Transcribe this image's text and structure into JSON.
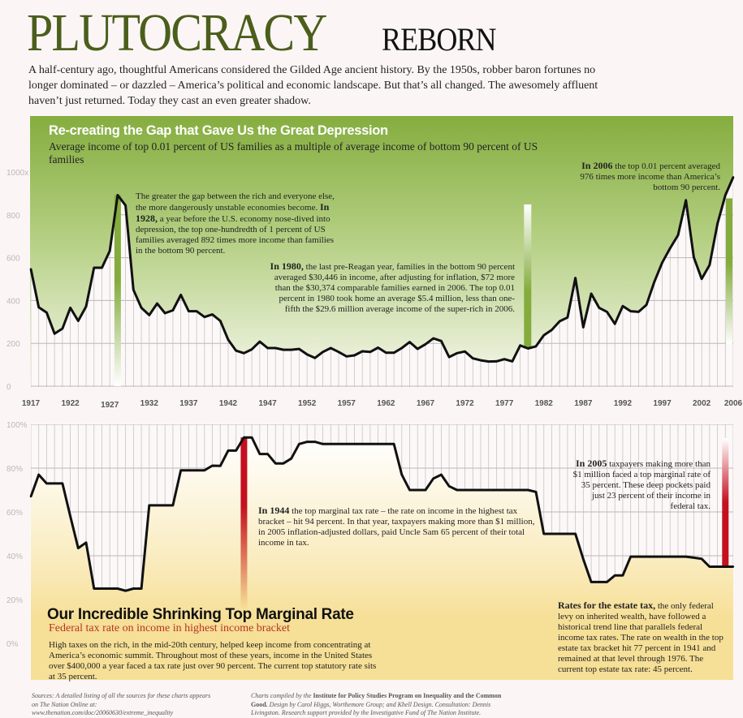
{
  "header": {
    "title_main": "PLUTOCRACY",
    "title_sub": "REBORN",
    "intro": "A half-century ago, thoughtful Americans considered the Gilded Age ancient history. By the 1950s, robber baron fortunes no longer dominated – or dazzled – America’s political and economic landscape. But that’s all changed. The awesomely affluent haven’t just returned. Today they cast an even greater shadow."
  },
  "income_panel": {
    "title": "Re-creating the Gap that Gave Us the Great Depression",
    "subtitle": "Average income of top 0.01 percent of US families as a multiple of average income of bottom 90 percent of US families",
    "note_1928": {
      "pre": "The greater the gap between the rich and everyone else, the more dangerously unstable economies become. ",
      "bold": "In 1928,",
      "post": " a year before the U.S. economy nose-dived into depression, the top one-hundredth of 1 percent of US families averaged 892 times more income than families in the bottom 90 percent."
    },
    "note_1980": {
      "bold": "In 1980,",
      "post": " the last pre-Reagan year, families in the bottom 90 percent averaged $30,446 in income, after adjusting for inflation, $72 more than the $30,374 comparable families earned in 2006. The top 0.01 percent in 1980 took home an average $5.4 million, less than one-fifth the $29.6 million average income of the super-rich in 2006."
    },
    "note_2006": {
      "bold": "In 2006",
      "post": " the top 0.01 percent averaged 976 times more income than America’s bottom 90 percent."
    }
  },
  "tax_panel": {
    "title": "Our Incredible Shrinking Top Marginal Rate",
    "subtitle": "Federal tax rate on income in highest income bracket",
    "body": "High taxes on the rich, in the mid-20th century, helped keep income from concentrating at America’s economic summit. Throughout most of these years, income in the United States over $400,000 a year faced a tax rate just over 90 percent. The current top statutory rate sits at 35 percent.",
    "note_1944": {
      "bold": "In 1944",
      "post": " the top marginal tax rate – the rate on income in the highest tax bracket – hit 94 percent. In that year, taxpayers making more than $1 million, in 2005 inflation-adjusted dollars, paid Uncle Sam 65 percent of their total income in tax."
    },
    "note_2005": {
      "bold": "In 2005",
      "post": " taxpayers making more than $1 million faced a top marginal rate of 35 percent. These deep pockets paid just 23 percent of their income in federal tax."
    },
    "note_estate": {
      "bold": "Rates for the estate tax,",
      "post": " the only federal levy on inherited wealth, have followed a historical trend line that parallels federal income tax rates. The rate on wealth in the top estate tax bracket hit 77 percent in 1941 and remained at that level through 1976. The current top estate tax rate: 45 percent."
    }
  },
  "footer": {
    "sources": "Sources: A detailed listing of all the sources for these charts appears on The Nation Online at: www.thenation.com/doc/20060630/extreme_inequality",
    "credits_pre": "Charts compiled by the ",
    "credits_bold": "Institute for Policy Studies Program on Inequality and the Common Good.",
    "credits_post": " Design by Carol Higgs, Worthemore Group; and Khell Design. Consultation: Dennis Livingston. Research support provided by the Investigative Fund of The Nation Institute."
  },
  "colors": {
    "title_green": "#4b5e1c",
    "income_fill": "#8bb046",
    "tax_fill": "#f6df96",
    "highlight_red": "#c4101f",
    "subtitle_red": "#b83228"
  },
  "chart_data": [
    {
      "type": "line",
      "x_start": 1917,
      "x_end": 2006,
      "x_tick_labels": [
        "1917",
        "1922",
        "1927",
        "1932",
        "1937",
        "1942",
        "1947",
        "1952",
        "1957",
        "1962",
        "1967",
        "1972",
        "1977",
        "1982",
        "1987",
        "1992",
        "1997",
        "2002",
        "2006"
      ],
      "y_tick_labels": [
        "0",
        "200",
        "400",
        "600",
        "800",
        "1000x"
      ],
      "ylim": [
        0,
        1000
      ],
      "highlight_years": [
        1928,
        1980,
        2006
      ],
      "values": [
        547,
        368,
        344,
        245,
        269,
        366,
        305,
        372,
        553,
        553,
        632,
        892,
        844,
        450,
        366,
        332,
        386,
        341,
        354,
        426,
        350,
        350,
        323,
        335,
        305,
        217,
        166,
        154,
        172,
        208,
        178,
        178,
        170,
        170,
        174,
        148,
        132,
        160,
        178,
        160,
        139,
        144,
        163,
        160,
        180,
        156,
        156,
        178,
        206,
        174,
        196,
        223,
        211,
        136,
        154,
        162,
        130,
        121,
        115,
        116,
        126,
        116,
        190,
        176,
        186,
        238,
        263,
        303,
        321,
        505,
        275,
        432,
        366,
        347,
        291,
        374,
        350,
        347,
        380,
        487,
        577,
        644,
        705,
        868,
        602,
        501,
        565,
        759,
        892,
        976
      ]
    },
    {
      "type": "line",
      "x_start": 1917,
      "x_end": 2006,
      "y_tick_labels": [
        "0%",
        "20%",
        "40%",
        "60%",
        "80%",
        "100%"
      ],
      "ylim": [
        0,
        100
      ],
      "highlight_years": [
        1944,
        2005
      ],
      "values": [
        67,
        77,
        73,
        73,
        73,
        58,
        43.5,
        46,
        25,
        25,
        25,
        25,
        24,
        25,
        25,
        63,
        63,
        63,
        63,
        79,
        79,
        79,
        79,
        81.1,
        81,
        88,
        88,
        94,
        94,
        86.45,
        86.45,
        82.13,
        82.13,
        84.36,
        91,
        92,
        92,
        91,
        91,
        91,
        91,
        91,
        91,
        91,
        91,
        91,
        91,
        77,
        70,
        70,
        70,
        75.25,
        77,
        71.75,
        70,
        70,
        70,
        70,
        70,
        70,
        70,
        70,
        70,
        70,
        69.13,
        50,
        50,
        50,
        50,
        50,
        38.5,
        28,
        28,
        28,
        31,
        31,
        39.6,
        39.6,
        39.6,
        39.6,
        39.6,
        39.6,
        39.6,
        39.6,
        39.1,
        38.6,
        35,
        35,
        35,
        35
      ]
    }
  ]
}
